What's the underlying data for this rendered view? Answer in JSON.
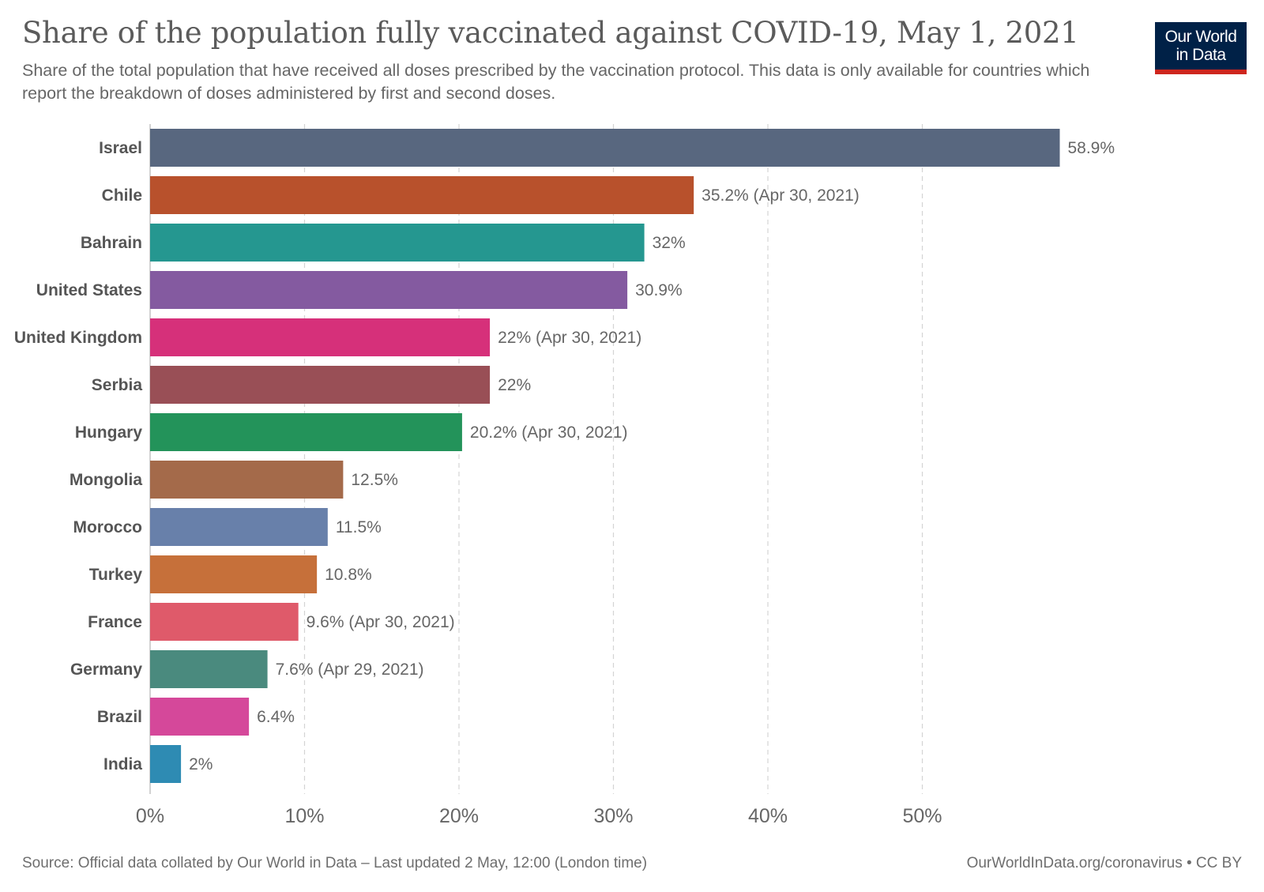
{
  "header": {
    "title": "Share of the population fully vaccinated against COVID-19, May 1, 2021",
    "subtitle": "Share of the total population that have received all doses prescribed by the vaccination protocol. This data is only available for countries which report the breakdown of doses administered by first and second doses."
  },
  "logo": {
    "line1": "Our World",
    "line2": "in Data",
    "bg_color": "#002147",
    "accent_color": "#ce261e"
  },
  "footer": {
    "source": "Source: Official data collated by Our World in Data – Last updated 2 May, 12:00 (London time)",
    "link": "OurWorldInData.org/coronavirus • CC BY"
  },
  "chart_data": {
    "type": "bar",
    "orientation": "horizontal",
    "unit": "%",
    "xlim": [
      0,
      60
    ],
    "grid": "vertical dashed",
    "xticks": [
      {
        "value": 0,
        "label": "0%"
      },
      {
        "value": 10,
        "label": "10%"
      },
      {
        "value": 20,
        "label": "20%"
      },
      {
        "value": 30,
        "label": "30%"
      },
      {
        "value": 40,
        "label": "40%"
      },
      {
        "value": 50,
        "label": "50%"
      }
    ],
    "bars": [
      {
        "category": "Israel",
        "value": 58.9,
        "label": "58.9%",
        "color": "#58677f"
      },
      {
        "category": "Chile",
        "value": 35.2,
        "label": "35.2% (Apr 30, 2021)",
        "color": "#b8512c"
      },
      {
        "category": "Bahrain",
        "value": 32,
        "label": "32%",
        "color": "#259790"
      },
      {
        "category": "United States",
        "value": 30.9,
        "label": "30.9%",
        "color": "#845aa0"
      },
      {
        "category": "United Kingdom",
        "value": 22,
        "label": "22% (Apr 30, 2021)",
        "color": "#d6307a"
      },
      {
        "category": "Serbia",
        "value": 22,
        "label": "22%",
        "color": "#994f56"
      },
      {
        "category": "Hungary",
        "value": 20.2,
        "label": "20.2% (Apr 30, 2021)",
        "color": "#23935a"
      },
      {
        "category": "Mongolia",
        "value": 12.5,
        "label": "12.5%",
        "color": "#a46a4a"
      },
      {
        "category": "Morocco",
        "value": 11.5,
        "label": "11.5%",
        "color": "#6880aa"
      },
      {
        "category": "Turkey",
        "value": 10.8,
        "label": "10.8%",
        "color": "#c6703a"
      },
      {
        "category": "France",
        "value": 9.6,
        "label": "9.6% (Apr 30, 2021)",
        "color": "#df5a6a"
      },
      {
        "category": "Germany",
        "value": 7.6,
        "label": "7.6% (Apr 29, 2021)",
        "color": "#4a8a7e"
      },
      {
        "category": "Brazil",
        "value": 6.4,
        "label": "6.4%",
        "color": "#d5489a"
      },
      {
        "category": "India",
        "value": 2,
        "label": "2%",
        "color": "#2e8bb3"
      }
    ]
  }
}
